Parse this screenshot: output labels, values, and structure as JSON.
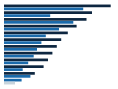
{
  "chart_data": {
    "type": "bar",
    "orientation": "horizontal",
    "categories": [
      null,
      null,
      null,
      null,
      null,
      null,
      null,
      null,
      null,
      null,
      null,
      null
    ],
    "series": [
      {
        "colors": [
          "#0d2640",
          "#0d2640",
          "#0d2640",
          "#0d2640",
          "#0d2640",
          "#0d2640",
          "#0d2640",
          "#0d2640",
          "#0d2640",
          "#0d2640",
          "#0d2640",
          "#1a6aab"
        ],
        "values": [
          97,
          80,
          75,
          66,
          58,
          52,
          48,
          44,
          40,
          36,
          28,
          16
        ]
      },
      {
        "colors": [
          "#1a6aab",
          "#1a6aab",
          "#1a6aab",
          "#1a6aab",
          "#1a6aab",
          "#1a6aab",
          "#1a6aab",
          "#1a6aab",
          "#1a6aab",
          "#1a6aab",
          "#1a6aab",
          "#c8d4dc"
        ],
        "values": [
          72,
          42,
          63,
          50,
          38,
          34,
          30,
          27,
          22,
          17,
          24,
          10
        ]
      }
    ],
    "xlim": [
      0,
      100
    ],
    "tick_labels": false,
    "grid": false
  }
}
